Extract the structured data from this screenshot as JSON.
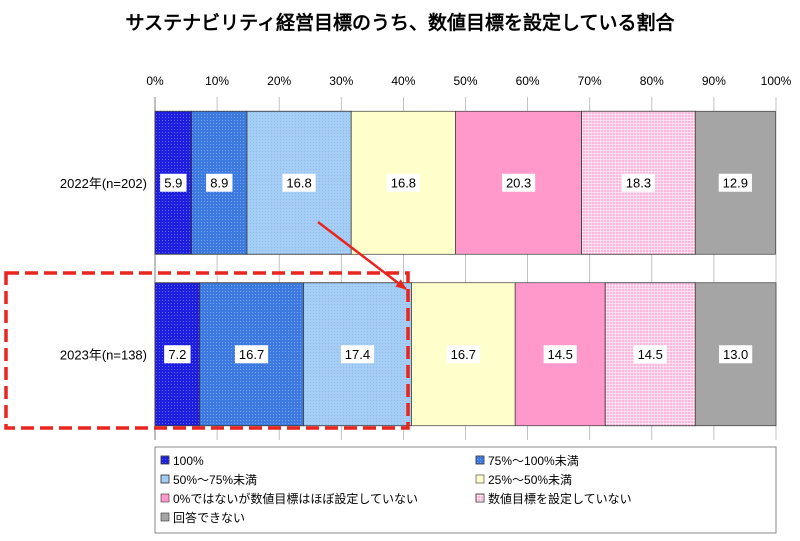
{
  "chart_data": {
    "type": "bar",
    "orientation": "horizontal",
    "stacked": true,
    "title": "サステナビリティ経営目標のうち、数値目標を設定している割合",
    "categories": [
      "2022年(n=202)",
      "2023年(n=138)"
    ],
    "xlim": [
      0,
      100
    ],
    "xtick_labels": [
      "0%",
      "10%",
      "20%",
      "30%",
      "40%",
      "50%",
      "60%",
      "70%",
      "80%",
      "90%",
      "100%"
    ],
    "grid": true,
    "legend": "bottom",
    "series": [
      {
        "name": "100%",
        "values": [
          5.9,
          7.2
        ],
        "labels": [
          "5.9",
          "7.2"
        ],
        "color": "#1e1ee0"
      },
      {
        "name": "75%～100%未満",
        "values": [
          8.9,
          16.7
        ],
        "labels": [
          "8.9",
          "16.7"
        ],
        "color": "#3d7ae0"
      },
      {
        "name": "50%～75%未満",
        "values": [
          16.8,
          17.4
        ],
        "labels": [
          "16.8",
          "17.4"
        ],
        "color": "#a6cdf4"
      },
      {
        "name": "25%～50%未満",
        "values": [
          16.8,
          16.7
        ],
        "labels": [
          "16.8",
          "16.7"
        ],
        "color": "#ffffcc"
      },
      {
        "name": "0%ではないが数値目標はほぼ設定していない",
        "values": [
          20.3,
          14.5
        ],
        "labels": [
          "20.3",
          "14.5"
        ],
        "color": "#ff99cc"
      },
      {
        "name": "数値目標を設定していない",
        "values": [
          18.3,
          14.5
        ],
        "labels": [
          "18.3",
          "14.5"
        ],
        "color": "#ffb6dc"
      },
      {
        "name": "回答できない",
        "values": [
          12.9,
          13.0
        ],
        "labels": [
          "12.9",
          "13.0"
        ],
        "color": "#a5a5a5"
      }
    ]
  },
  "annotation_color": "#e8251f"
}
